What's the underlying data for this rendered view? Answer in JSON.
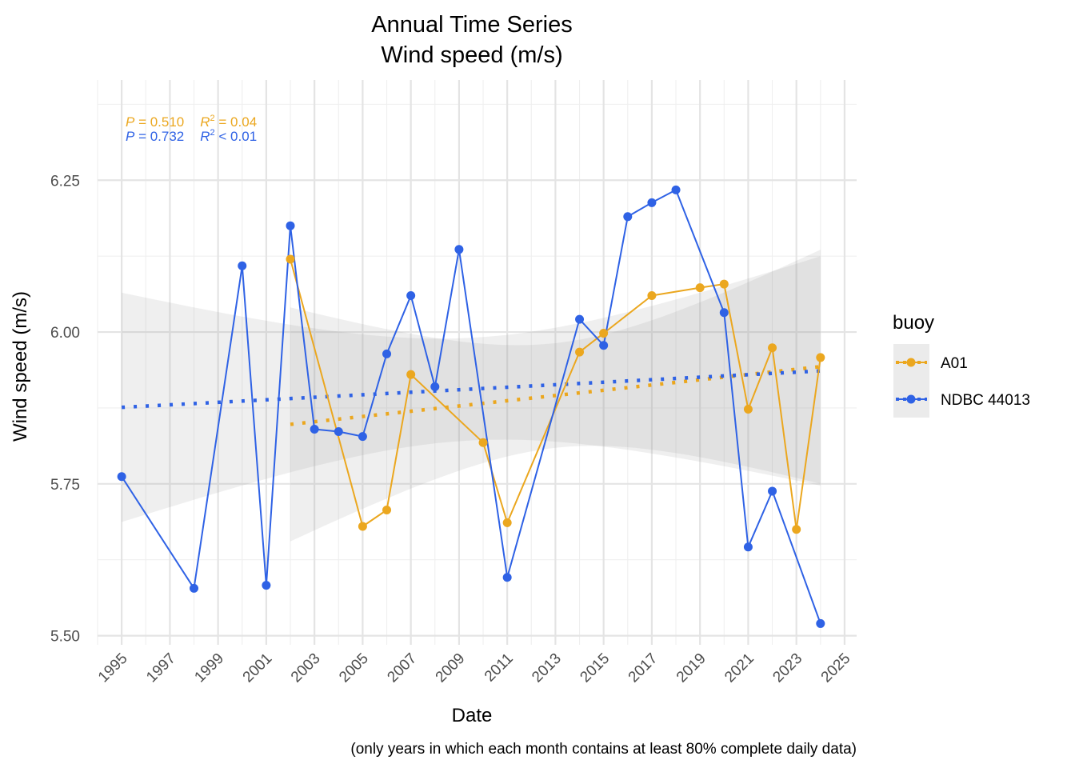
{
  "chart_data": {
    "type": "line",
    "title_line1": "Annual Time Series",
    "title_line2": "Wind speed (m/s)",
    "xlabel": "Date",
    "ylabel": "Wind speed (m/s)",
    "caption": "(only years in which each month contains at least 80% complete daily data)",
    "xlim": [
      1994,
      2025.5
    ],
    "ylim": [
      5.485,
      6.415
    ],
    "x_ticks": [
      "1995",
      "1997",
      "1999",
      "2001",
      "2003",
      "2005",
      "2007",
      "2009",
      "2011",
      "2013",
      "2015",
      "2017",
      "2019",
      "2021",
      "2023",
      "2025"
    ],
    "y_ticks": [
      "5.50",
      "5.75",
      "6.00",
      "6.25"
    ],
    "grid": true,
    "legend": {
      "title": "buoy",
      "position": "right"
    },
    "series": [
      {
        "name": "A01",
        "color": "#EBA71F",
        "x": [
          2002,
          2005,
          2006,
          2007,
          2010,
          2011,
          2014,
          2015,
          2017,
          2019,
          2020,
          2021,
          2022,
          2023,
          2024
        ],
        "y": [
          6.12,
          5.68,
          5.707,
          5.93,
          5.818,
          5.686,
          5.967,
          5.998,
          6.06,
          6.073,
          6.079,
          5.873,
          5.974,
          5.675,
          5.958
        ],
        "trend": {
          "x": [
            2002,
            2024
          ],
          "y": [
            5.848,
            5.943
          ]
        },
        "band": {
          "x": [
            2002,
            2024
          ],
          "lower": [
            5.657,
            5.728
          ],
          "upper": [
            6.009,
            6.144
          ]
        },
        "stats": {
          "p": "0.510",
          "r2": "= 0.04"
        }
      },
      {
        "name": "NDBC 44013",
        "color": "#2F62E5",
        "x": [
          1995,
          1998,
          2000,
          2001,
          2002,
          2003,
          2004,
          2005,
          2006,
          2007,
          2008,
          2009,
          2011,
          2014,
          2015,
          2016,
          2017,
          2018,
          2020,
          2021,
          2022,
          2024
        ],
        "y": [
          5.762,
          5.578,
          6.109,
          5.583,
          6.175,
          5.84,
          5.836,
          5.828,
          5.964,
          6.06,
          5.91,
          6.136,
          5.596,
          6.021,
          5.978,
          6.19,
          6.213,
          6.234,
          6.032,
          5.646,
          5.738,
          5.52
        ],
        "trend": {
          "x": [
            1995,
            2024
          ],
          "y": [
            5.876,
            5.936
          ]
        },
        "band": {
          "x": [
            1995,
            2024
          ],
          "lower": [
            5.663,
            5.78
          ],
          "upper": [
            6.089,
            6.102
          ]
        },
        "stats": {
          "p": "0.732",
          "r2": "< 0.01"
        }
      }
    ]
  }
}
